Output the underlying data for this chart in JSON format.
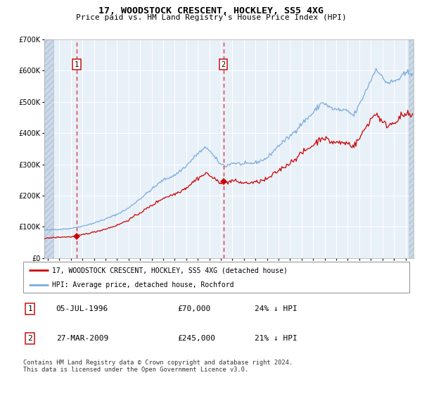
{
  "title": "17, WOODSTOCK CRESCENT, HOCKLEY, SS5 4XG",
  "subtitle": "Price paid vs. HM Land Registry's House Price Index (HPI)",
  "hpi_color": "#7aaadd",
  "price_color": "#cc0000",
  "plot_bg_color": "#e8f0f8",
  "ylim": [
    0,
    700000
  ],
  "ytick_values": [
    0,
    100000,
    200000,
    300000,
    400000,
    500000,
    600000,
    700000
  ],
  "sale1": {
    "date_num": 1996.51,
    "price": 70000,
    "label": "1",
    "date_str": "05-JUL-1996",
    "pct": "24% ↓ HPI"
  },
  "sale2": {
    "date_num": 2009.22,
    "price": 245000,
    "label": "2",
    "date_str": "27-MAR-2009",
    "pct": "21% ↓ HPI"
  },
  "legend_line1": "17, WOODSTOCK CRESCENT, HOCKLEY, SS5 4XG (detached house)",
  "legend_line2": "HPI: Average price, detached house, Rochford",
  "footer": "Contains HM Land Registry data © Crown copyright and database right 2024.\nThis data is licensed under the Open Government Licence v3.0.",
  "xmin": 1993.7,
  "xmax": 2025.7
}
